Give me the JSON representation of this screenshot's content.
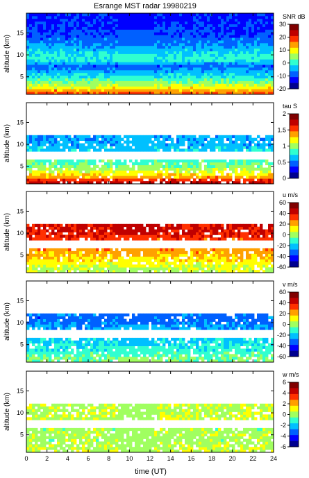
{
  "figure": {
    "title": "Esrange MST radar 19980219",
    "xlabel": "time (UT)",
    "x_ticks": [
      0,
      2,
      4,
      6,
      8,
      10,
      12,
      14,
      16,
      18,
      20,
      22,
      24
    ],
    "xlim": [
      0,
      24
    ]
  },
  "colormap": [
    "#00008f",
    "#0000ff",
    "#0060ff",
    "#00c0ff",
    "#30ffd0",
    "#a0ff60",
    "#ffff00",
    "#ffa000",
    "#ff3000",
    "#c00000",
    "#800000"
  ],
  "chart_data": [
    {
      "type": "heatmap",
      "ylabel": "altitude (km)",
      "y_ticks": [
        5,
        10,
        15
      ],
      "ylim": [
        1,
        19.5
      ],
      "colorbar_label": "SNR dB",
      "colorbar_ticks": [
        30,
        20,
        10,
        0,
        -10,
        -20
      ],
      "colorbar_range": [
        -20,
        30
      ],
      "profile": [
        {
          "alt": 1.5,
          "value": 18
        },
        {
          "alt": 2.5,
          "value": 10
        },
        {
          "alt": 3.5,
          "value": 6
        },
        {
          "alt": 4.5,
          "value": 0
        },
        {
          "alt": 6.0,
          "value": -5
        },
        {
          "alt": 7.5,
          "value": -10
        },
        {
          "alt": 9.0,
          "value": 0
        },
        {
          "alt": 10.5,
          "value": -3
        },
        {
          "alt": 12.5,
          "value": -8
        },
        {
          "alt": 15.0,
          "value": -12
        },
        {
          "alt": 18.0,
          "value": -14
        }
      ],
      "gap_hours": [
        9,
        12.5
      ]
    },
    {
      "type": "heatmap",
      "ylabel": "altitude (km)",
      "y_ticks": [
        5,
        10,
        15
      ],
      "ylim": [
        1,
        19.5
      ],
      "colorbar_label": "tau S",
      "colorbar_ticks": [
        2,
        1.5,
        1,
        0.5,
        0
      ],
      "colorbar_range": [
        0,
        2
      ],
      "profile": [
        {
          "alt": 1.5,
          "value": 1.8
        },
        {
          "alt": 2.5,
          "value": 1.4
        },
        {
          "alt": 3.5,
          "value": 1.2
        },
        {
          "alt": 4.5,
          "value": 1.0
        },
        {
          "alt": 5.5,
          "value": 0.9
        },
        {
          "alt": 9.5,
          "value": 0.6
        },
        {
          "alt": 10.5,
          "value": 0.55
        }
      ],
      "gap_hours": [
        9,
        12.5
      ]
    },
    {
      "type": "heatmap",
      "ylabel": "altitude (km)",
      "y_ticks": [
        5,
        10,
        15
      ],
      "ylim": [
        1,
        19.5
      ],
      "colorbar_label": "u m/s",
      "colorbar_ticks": [
        60,
        40,
        20,
        0,
        -20,
        -40,
        -60
      ],
      "colorbar_range": [
        -60,
        60
      ],
      "profile": [
        {
          "alt": 2.0,
          "value": 5
        },
        {
          "alt": 3.0,
          "value": 10
        },
        {
          "alt": 4.0,
          "value": 15
        },
        {
          "alt": 5.0,
          "value": 20
        },
        {
          "alt": 6.0,
          "value": 25
        },
        {
          "alt": 9.5,
          "value": 40
        },
        {
          "alt": 10.5,
          "value": 45
        }
      ],
      "gap_hours": [
        9,
        12.5
      ]
    },
    {
      "type": "heatmap",
      "ylabel": "altitude (km)",
      "y_ticks": [
        5,
        10,
        15
      ],
      "ylim": [
        1,
        19.5
      ],
      "colorbar_label": "v m/s",
      "colorbar_ticks": [
        60,
        40,
        20,
        0,
        -20,
        -40,
        -60
      ],
      "colorbar_range": [
        -60,
        60
      ],
      "profile": [
        {
          "alt": 2.0,
          "value": -5
        },
        {
          "alt": 3.0,
          "value": -10
        },
        {
          "alt": 4.0,
          "value": -15
        },
        {
          "alt": 5.0,
          "value": -18
        },
        {
          "alt": 6.0,
          "value": -20
        },
        {
          "alt": 9.5,
          "value": -30
        },
        {
          "alt": 10.5,
          "value": -35
        }
      ],
      "gap_hours": [
        9,
        12.5
      ]
    },
    {
      "type": "heatmap",
      "ylabel": "altitude (km)",
      "y_ticks": [
        5,
        10,
        15
      ],
      "ylim": [
        1,
        19.5
      ],
      "colorbar_label": "w m/s",
      "colorbar_ticks": [
        6,
        4,
        2,
        0,
        -2,
        -4,
        -6
      ],
      "colorbar_range": [
        -6,
        6
      ],
      "profile": [
        {
          "alt": 2.0,
          "value": 0.5
        },
        {
          "alt": 3.0,
          "value": 0.2
        },
        {
          "alt": 4.0,
          "value": 0
        },
        {
          "alt": 5.0,
          "value": 0.3
        },
        {
          "alt": 6.0,
          "value": 0
        },
        {
          "alt": 9.5,
          "value": 0.5
        },
        {
          "alt": 10.5,
          "value": 0.3
        }
      ],
      "gap_hours": [
        9,
        12.5
      ]
    }
  ]
}
